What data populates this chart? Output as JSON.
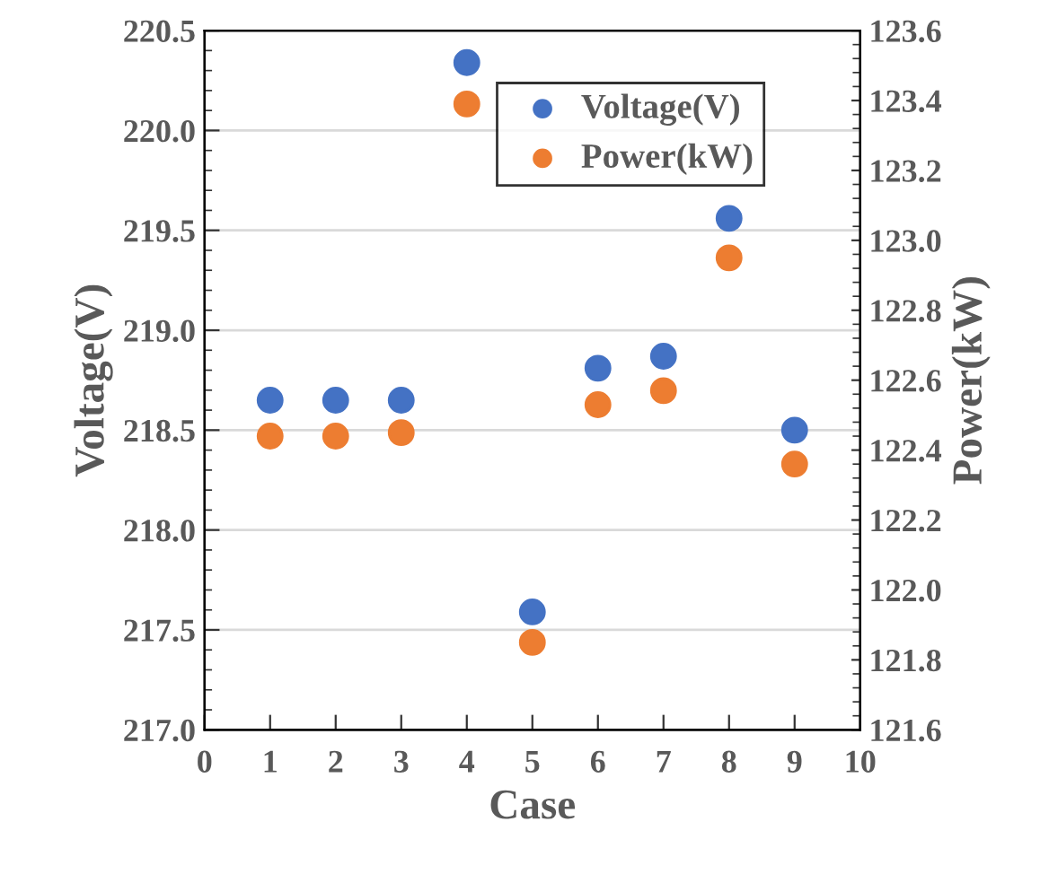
{
  "chart_data": {
    "type": "scatter",
    "xlabel": "Case",
    "ylabel": "Voltage(V)",
    "y2label": "Power(kW)",
    "x": [
      1,
      2,
      3,
      4,
      5,
      6,
      7,
      8,
      9
    ],
    "series": [
      {
        "name": "Voltage(V)",
        "color": "#4472c4",
        "values": [
          218.65,
          218.65,
          218.65,
          220.34,
          217.59,
          218.81,
          218.87,
          219.56,
          218.5
        ]
      },
      {
        "name": "Power(kW)",
        "color": "#ed7d31",
        "axis": "y2",
        "values": [
          122.44,
          122.44,
          122.45,
          123.39,
          121.85,
          122.53,
          122.57,
          122.95,
          122.36
        ]
      }
    ],
    "xlim": [
      0,
      10
    ],
    "xticks": [
      0,
      1,
      2,
      3,
      4,
      5,
      6,
      7,
      8,
      9,
      10
    ],
    "ylim": [
      217.0,
      220.5
    ],
    "yticks": [
      {
        "value": 217.0,
        "label": "217.0"
      },
      {
        "value": 217.5,
        "label": "217.5"
      },
      {
        "value": 218.0,
        "label": "218.0"
      },
      {
        "value": 218.5,
        "label": "218.5"
      },
      {
        "value": 219.0,
        "label": "219.0"
      },
      {
        "value": 219.5,
        "label": "219.5"
      },
      {
        "value": 220.0,
        "label": "220.0"
      },
      {
        "value": 220.5,
        "label": "220.5"
      }
    ],
    "y2lim": [
      121.6,
      123.6
    ],
    "y2ticks": [
      {
        "value": 121.6,
        "label": "121.6"
      },
      {
        "value": 121.8,
        "label": "121.8"
      },
      {
        "value": 122.0,
        "label": "122.0"
      },
      {
        "value": 122.2,
        "label": "122.2"
      },
      {
        "value": 122.4,
        "label": "122.4"
      },
      {
        "value": 122.6,
        "label": "122.6"
      },
      {
        "value": 122.8,
        "label": "122.8"
      },
      {
        "value": 123.0,
        "label": "123.0"
      },
      {
        "value": 123.2,
        "label": "123.2"
      },
      {
        "value": 123.4,
        "label": "123.4"
      },
      {
        "value": 123.6,
        "label": "123.6"
      }
    ],
    "grid": "y",
    "legend": "top right",
    "marker": "circle"
  }
}
